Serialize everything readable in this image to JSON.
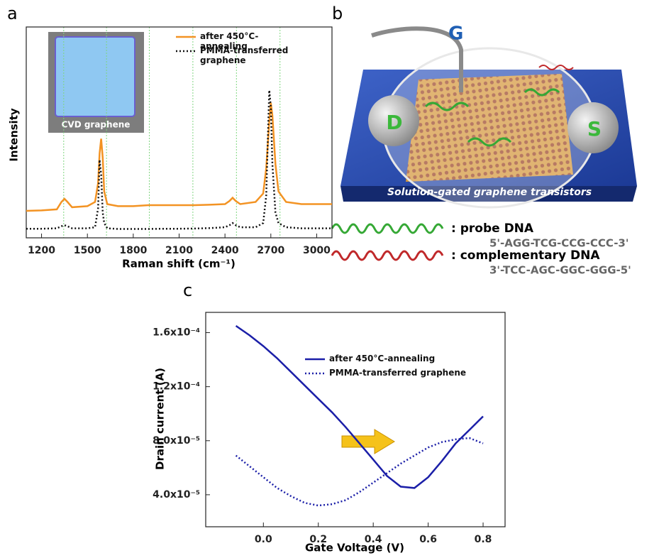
{
  "panel_labels": [
    "a",
    "b",
    "c"
  ],
  "chart_data": [
    {
      "type": "line",
      "xlabel": "Raman shift (cm⁻¹)",
      "ylabel": "Intensity",
      "annotations": [
        "CVD graphene"
      ],
      "xlim": [
        1100,
        3100
      ],
      "xticks": [
        1200,
        1500,
        1800,
        2100,
        2400,
        2700,
        3000
      ],
      "ylim": [
        0,
        100
      ],
      "reference_lines": [
        1345,
        1625,
        1905,
        2190,
        2475,
        2760
      ],
      "reference_color": "#7fd67f",
      "x": [
        1100,
        1200,
        1300,
        1330,
        1350,
        1370,
        1400,
        1500,
        1550,
        1570,
        1580,
        1590,
        1600,
        1610,
        1630,
        1700,
        1800,
        1900,
        2000,
        2100,
        2200,
        2300,
        2400,
        2430,
        2450,
        2470,
        2500,
        2600,
        2650,
        2670,
        2690,
        2700,
        2710,
        2730,
        2750,
        2800,
        2900,
        3000,
        3100
      ],
      "series": [
        {
          "name": "after 450°C-annealing",
          "color": "#f39323",
          "style": "solid",
          "values": [
            12.8,
            13,
            13.5,
            17,
            18.5,
            17,
            14.5,
            15,
            17,
            26,
            40,
            47,
            38,
            22,
            16,
            15,
            15,
            15.5,
            15.5,
            15.5,
            15.5,
            15.7,
            16,
            17.5,
            19,
            17.5,
            16,
            17,
            21,
            33,
            55,
            64,
            58,
            35,
            22,
            17,
            16,
            16,
            16
          ]
        },
        {
          "name": "PMMA-transferred graphene",
          "color": "#111111",
          "style": "dotted",
          "values": [
            4.3,
            4.3,
            4.5,
            5.5,
            6,
            5.5,
            4.5,
            4.5,
            5,
            14,
            37,
            30,
            12,
            7,
            4.5,
            4.2,
            4.2,
            4.2,
            4.3,
            4.3,
            4.4,
            4.6,
            5,
            6,
            7,
            6,
            5,
            5,
            7,
            20,
            70,
            62,
            35,
            12,
            7,
            5,
            4.5,
            4.5,
            4.5
          ]
        }
      ]
    },
    {
      "type": "line",
      "xlabel": "Gate Voltage (V)",
      "ylabel": "Drain current (A)",
      "xlim": [
        -0.21,
        0.88
      ],
      "xticks": [
        {
          "value": 0,
          "label": "0.0"
        },
        0.2,
        0.4,
        0.6,
        0.8
      ],
      "ylim": [
        1.63e-05,
        0.000175
      ],
      "yticks": [
        {
          "value": 4e-05,
          "label": "4.0x10⁻⁵"
        },
        {
          "value": 8e-05,
          "label": "8.0x10⁻⁵"
        },
        {
          "value": 0.00012,
          "label": "1.2x10⁻⁴"
        },
        {
          "value": 0.00016,
          "label": "1.6x10⁻⁴"
        }
      ],
      "x": [
        -0.1,
        -0.05,
        0,
        0.05,
        0.1,
        0.15,
        0.2,
        0.25,
        0.3,
        0.35,
        0.4,
        0.45,
        0.5,
        0.55,
        0.6,
        0.65,
        0.7,
        0.75,
        0.8
      ],
      "series": [
        {
          "name": "after 450°C-annealing",
          "color": "#1b1fa8",
          "style": "solid",
          "values": [
            0.000165,
            0.000158,
            0.00015,
            0.000141,
            0.000131,
            0.000121,
            0.000111,
            0.000101,
            9e-05,
            7.8e-05,
            6.6e-05,
            5.4e-05,
            4.6e-05,
            4.5e-05,
            5.3e-05,
            6.5e-05,
            7.8e-05,
            8.8e-05,
            9.8e-05
          ]
        },
        {
          "name": "PMMA-transferred graphene",
          "color": "#1b1fa8",
          "style": "dotted",
          "values": [
            6.9e-05,
            6.1e-05,
            5.3e-05,
            4.5e-05,
            3.9e-05,
            3.4e-05,
            3.2e-05,
            3.3e-05,
            3.6e-05,
            4.2e-05,
            4.9e-05,
            5.6e-05,
            6.3e-05,
            6.9e-05,
            7.5e-05,
            7.9e-05,
            8.1e-05,
            8.2e-05,
            7.8e-05
          ]
        }
      ]
    }
  ],
  "diagram": {
    "gate_label": "G",
    "drain_label": "D",
    "source_label": "S",
    "caption": "Solution-gated graphene transistors",
    "legend": [
      {
        "label": ": probe DNA",
        "sequence": "5'-AGG-TCG-CCG-CCC-3'",
        "color": "#35a835"
      },
      {
        "label": ": complementary DNA",
        "sequence": "3'-TCC-AGC-GGC-GGG-5'",
        "color": "#c0282a"
      }
    ]
  }
}
